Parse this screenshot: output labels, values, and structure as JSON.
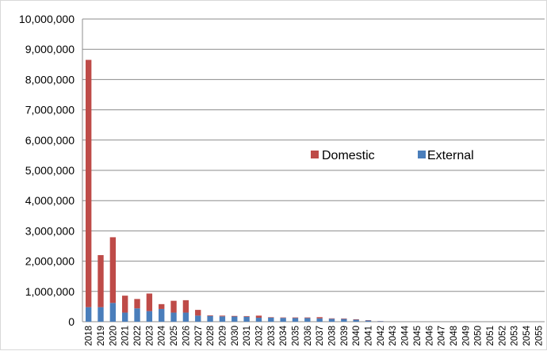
{
  "chart_data": {
    "type": "bar",
    "stacked": true,
    "title": "",
    "xlabel": "",
    "ylabel": "",
    "ylim": [
      0,
      10000000
    ],
    "yticks": [
      "0",
      "1,000,000",
      "2,000,000",
      "3,000,000",
      "4,000,000",
      "5,000,000",
      "6,000,000",
      "7,000,000",
      "8,000,000",
      "9,000,000",
      "10,000,000"
    ],
    "grid": true,
    "legend_position": "center-right",
    "categories": [
      "2018",
      "2019",
      "2020",
      "2021",
      "2022",
      "2023",
      "2024",
      "2025",
      "2026",
      "2027",
      "2028",
      "2029",
      "2030",
      "2031",
      "2032",
      "2033",
      "2034",
      "2035",
      "2036",
      "2037",
      "2038",
      "2039",
      "2040",
      "2041",
      "2042",
      "2043",
      "2044",
      "2045",
      "2046",
      "2047",
      "2048",
      "2049",
      "2050",
      "2051",
      "2052",
      "2053",
      "2054",
      "2055"
    ],
    "series": [
      {
        "name": "External",
        "color": "#4a7ebb",
        "values": [
          480000,
          480000,
          620000,
          300000,
          440000,
          350000,
          420000,
          300000,
          300000,
          200000,
          190000,
          175000,
          170000,
          165000,
          130000,
          135000,
          125000,
          120000,
          120000,
          110000,
          95000,
          90000,
          65000,
          40000,
          15000,
          0,
          0,
          0,
          0,
          0,
          0,
          0,
          0,
          0,
          0,
          0,
          0,
          0
        ]
      },
      {
        "name": "Domestic",
        "color": "#be4b48",
        "values": [
          8170000,
          1720000,
          2170000,
          560000,
          310000,
          580000,
          160000,
          390000,
          410000,
          190000,
          20000,
          25000,
          20000,
          20000,
          70000,
          15000,
          15000,
          20000,
          20000,
          40000,
          15000,
          15000,
          15000,
          10000,
          5000,
          0,
          0,
          0,
          0,
          0,
          0,
          0,
          0,
          0,
          0,
          0,
          0,
          0
        ]
      }
    ],
    "legend": {
      "items": [
        {
          "label": "Domestic",
          "color": "#be4b48"
        },
        {
          "label": "External",
          "color": "#4a7ebb"
        }
      ]
    }
  }
}
